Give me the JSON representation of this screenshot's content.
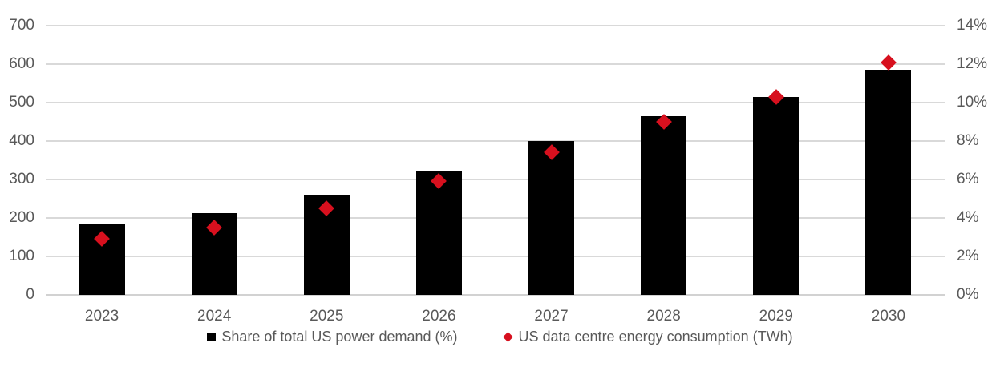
{
  "chart_data": {
    "type": "combo-bar-scatter",
    "title": "",
    "categories": [
      "2023",
      "2024",
      "2025",
      "2026",
      "2027",
      "2028",
      "2029",
      "2030"
    ],
    "series": [
      {
        "name": "Share of total US power demand (%)",
        "type": "bar",
        "marker": "square",
        "axis": "left",
        "color": "#000000",
        "values": [
          185,
          213,
          260,
          322,
          400,
          465,
          515,
          585
        ]
      },
      {
        "name": "US data centre energy consumption (TWh)",
        "type": "scatter",
        "marker": "diamond",
        "axis": "right",
        "color": "#d7101e",
        "values": [
          2.9,
          3.5,
          4.5,
          5.9,
          7.4,
          9.0,
          10.3,
          12.1
        ]
      }
    ],
    "left_axis": {
      "min": 0,
      "max": 700,
      "step": 100,
      "tick_labels": [
        "0",
        "100",
        "200",
        "300",
        "400",
        "500",
        "600",
        "700"
      ]
    },
    "right_axis": {
      "min": 0,
      "max": 14,
      "step": 2,
      "tick_labels": [
        "0%",
        "2%",
        "4%",
        "6%",
        "8%",
        "10%",
        "12%",
        "14%"
      ]
    },
    "grid": true,
    "legend_position": "bottom"
  },
  "legend": {
    "items": [
      {
        "label": "Share of total US power demand (%)",
        "marker": "square",
        "color": "#000000"
      },
      {
        "label": "US data centre energy consumption (TWh)",
        "marker": "diamond",
        "color": "#d7101e"
      }
    ]
  },
  "colors": {
    "background": "#ffffff",
    "gridline": "#d9d9d9",
    "axis_line": "#d2d2d2",
    "axis_text": "#595959",
    "bar": "#000000",
    "diamond": "#d7101e"
  }
}
